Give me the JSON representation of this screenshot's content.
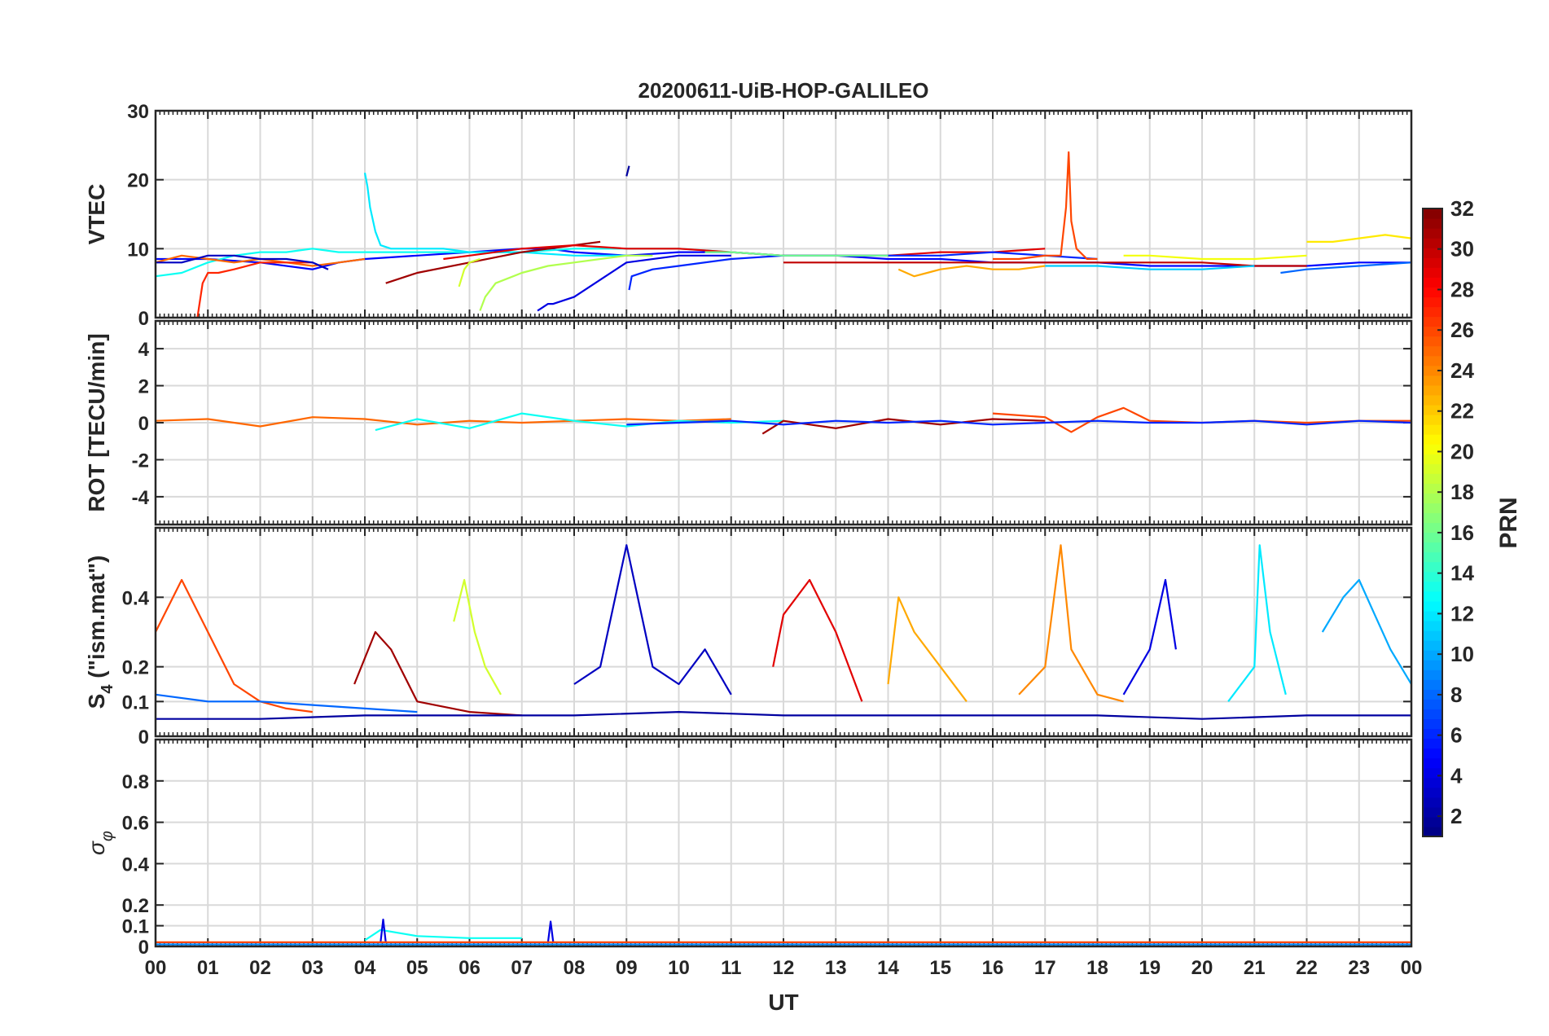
{
  "title": "20200611-UiB-HOP-GALILEO",
  "x_axis": {
    "label": "UT",
    "tick_labels": [
      "00",
      "01",
      "02",
      "03",
      "04",
      "05",
      "06",
      "07",
      "08",
      "09",
      "10",
      "11",
      "12",
      "13",
      "14",
      "15",
      "16",
      "17",
      "18",
      "19",
      "20",
      "21",
      "22",
      "23",
      "00"
    ]
  },
  "colorbar": {
    "label": "PRN",
    "range": [
      1,
      32
    ],
    "tick_labels": [
      "2",
      "4",
      "6",
      "8",
      "10",
      "12",
      "14",
      "16",
      "18",
      "20",
      "22",
      "24",
      "26",
      "28",
      "30",
      "32"
    ],
    "colormap": "jet"
  },
  "panels": [
    {
      "id": "vtec",
      "ylabel": "VTEC",
      "tick_labels": [
        "0",
        "10",
        "20",
        "30"
      ]
    },
    {
      "id": "rot",
      "ylabel": "ROT [TECU/min]",
      "tick_labels": [
        "-4",
        "-2",
        "0",
        "2",
        "4"
      ]
    },
    {
      "id": "s4",
      "ylabel_main": "S",
      "ylabel_sub": "4",
      "ylabel_rest": " (\"ism.mat\")",
      "tick_labels": [
        "0",
        "0.1",
        "0.2",
        "0.4"
      ]
    },
    {
      "id": "sigphi",
      "ylabel_main": "σ",
      "ylabel_sub": "φ",
      "tick_labels": [
        "0",
        "0.1",
        "0.2",
        "0.4",
        "0.6",
        "0.8"
      ]
    }
  ],
  "chart_data": [
    {
      "type": "line",
      "panel": "vtec",
      "title": "20200611-UiB-HOP-GALILEO",
      "xlabel": "UT",
      "ylabel": "VTEC",
      "xlim": [
        0,
        24
      ],
      "ylim": [
        0,
        30
      ],
      "yticks": [
        0,
        10,
        20,
        30
      ],
      "grid": true,
      "series": [
        {
          "prn": 5,
          "x": [
            0,
            1,
            2,
            3,
            3.5,
            4,
            5,
            6,
            7,
            7.5,
            8,
            9,
            10,
            11,
            12,
            13,
            14,
            15,
            16,
            17,
            18,
            19,
            20,
            21,
            22,
            23,
            24
          ],
          "y": [
            8.5,
            8.5,
            8,
            7,
            8,
            8.5,
            9,
            9.5,
            10,
            10,
            9.5,
            9,
            9.5,
            9.5,
            9,
            9,
            8.5,
            8.5,
            8,
            8,
            8,
            7.5,
            7.5,
            7.5,
            7.5,
            8,
            8
          ]
        },
        {
          "prn": 13,
          "x": [
            0,
            0.5,
            1,
            1.5,
            2,
            2.5,
            3,
            3.5,
            4,
            5,
            6,
            7,
            8,
            9,
            10,
            11
          ],
          "y": [
            6,
            6.5,
            8,
            9,
            9.5,
            9.5,
            10,
            9.5,
            9.5,
            9.5,
            9.5,
            9.5,
            10,
            10,
            10,
            9.5
          ]
        },
        {
          "prn": 25,
          "x": [
            0,
            0.5,
            1,
            1.5,
            2,
            2.5,
            3,
            3.5,
            4
          ],
          "y": [
            8,
            9,
            8.5,
            8,
            8.5,
            8,
            7.5,
            8,
            8.5
          ]
        },
        {
          "prn": 27,
          "x": [
            0.8,
            0.9,
            1,
            1.2,
            1.5,
            2,
            2.5,
            3
          ],
          "y": [
            0,
            5,
            6.5,
            6.5,
            7,
            8,
            8,
            8
          ]
        },
        {
          "prn": 3,
          "x": [
            0,
            0.5,
            1,
            1.5,
            2,
            2.5,
            3,
            3.3
          ],
          "y": [
            8,
            8,
            9,
            9,
            8.5,
            8.5,
            8,
            7
          ]
        },
        {
          "prn": 12,
          "x": [
            4,
            4.05,
            4.1,
            4.2,
            4.3,
            4.5,
            5,
            5.5,
            6,
            6.5,
            7,
            8,
            9
          ],
          "y": [
            21,
            19,
            16,
            12.5,
            10.5,
            10,
            10,
            10,
            9.5,
            9.5,
            9.5,
            9,
            9
          ]
        },
        {
          "prn": 31,
          "x": [
            4.4,
            5,
            6,
            7,
            8,
            8.5
          ],
          "y": [
            5,
            6.5,
            8,
            9.5,
            10.5,
            11
          ]
        },
        {
          "prn": 29,
          "x": [
            5.5,
            6,
            7,
            8,
            9,
            10,
            11,
            12,
            13,
            14,
            15,
            16,
            17
          ],
          "y": [
            8.5,
            9,
            10,
            10.5,
            10,
            10,
            9.5,
            9,
            9,
            9,
            9.5,
            9.5,
            10
          ]
        },
        {
          "prn": 19,
          "x": [
            5.8,
            5.9,
            6,
            6.2
          ],
          "y": [
            4.5,
            7,
            8,
            8.5
          ]
        },
        {
          "prn": 18,
          "x": [
            6.2,
            6.3,
            6.5,
            7,
            7.5,
            8,
            8.5,
            9,
            9.5
          ],
          "y": [
            1,
            3,
            5,
            6.5,
            7.5,
            8,
            8.5,
            9,
            9
          ]
        },
        {
          "prn": 4,
          "x": [
            7.3,
            7.4,
            7.5,
            7.6,
            8,
            9,
            10,
            11
          ],
          "y": [
            1,
            1.5,
            2,
            2,
            3,
            8,
            9,
            9
          ]
        },
        {
          "prn": 2,
          "x": [
            9,
            9.05
          ],
          "y": [
            20.5,
            22
          ]
        },
        {
          "prn": 6,
          "x": [
            9.05,
            9.1,
            9.5,
            10,
            11,
            12,
            13,
            14,
            15,
            16,
            17,
            18
          ],
          "y": [
            4,
            6,
            7,
            7.5,
            8.5,
            9,
            9,
            9,
            9,
            9.5,
            9,
            8.5
          ]
        },
        {
          "prn": 16,
          "x": [
            10.5,
            11,
            12,
            13,
            14
          ],
          "y": [
            9.5,
            9.5,
            9,
            9,
            9
          ]
        },
        {
          "prn": 23,
          "x": [
            14.2,
            14.5,
            15,
            15.5,
            16,
            16.5,
            17
          ],
          "y": [
            7,
            6,
            7,
            7.5,
            7,
            7,
            7.5
          ]
        },
        {
          "prn": 26,
          "x": [
            16,
            16.5,
            17,
            17.3,
            17.4,
            17.45,
            17.5,
            17.6,
            17.8,
            18
          ],
          "y": [
            8.5,
            8.5,
            9,
            9,
            16,
            24,
            14,
            10,
            8.5,
            8.5
          ]
        },
        {
          "prn": 30,
          "x": [
            12,
            13,
            14,
            15,
            16,
            17,
            18,
            19,
            20,
            21,
            22
          ],
          "y": [
            8,
            8,
            8,
            8,
            8,
            8,
            8,
            8,
            8,
            7.5,
            7.5
          ]
        },
        {
          "prn": 11,
          "x": [
            17,
            18,
            19,
            20,
            21
          ],
          "y": [
            7.5,
            7.5,
            7,
            7,
            7.5
          ]
        },
        {
          "prn": 20,
          "x": [
            18.5,
            19,
            20,
            21,
            22
          ],
          "y": [
            9,
            9,
            8.5,
            8.5,
            9
          ]
        },
        {
          "prn": 8,
          "x": [
            21.5,
            22,
            23,
            24
          ],
          "y": [
            6.5,
            7,
            7.5,
            8
          ]
        },
        {
          "prn": 21,
          "x": [
            22,
            22.5,
            23,
            23.5,
            24
          ],
          "y": [
            11,
            11,
            11.5,
            12,
            11.5
          ]
        }
      ]
    },
    {
      "type": "line",
      "panel": "rot",
      "xlabel": "UT",
      "ylabel": "ROT [TECU/min]",
      "xlim": [
        0,
        24
      ],
      "ylim": [
        -5.5,
        5.5
      ],
      "yticks": [
        -4,
        -2,
        0,
        2,
        4
      ],
      "grid": true,
      "series": [
        {
          "prn": 25,
          "x": [
            0,
            1,
            2,
            3,
            4,
            5,
            6,
            7,
            8,
            9,
            10,
            11
          ],
          "y": [
            0.1,
            0.2,
            -0.2,
            0.3,
            0.2,
            -0.1,
            0.1,
            0,
            0.1,
            0.2,
            0.1,
            0.2
          ]
        },
        {
          "prn": 13,
          "x": [
            4.2,
            5,
            6,
            7,
            8,
            9,
            10,
            11,
            12
          ],
          "y": [
            -0.4,
            0.2,
            -0.3,
            0.5,
            0.1,
            -0.2,
            0.1,
            0,
            0.1
          ]
        },
        {
          "prn": 31,
          "x": [
            11.6,
            12,
            13,
            14,
            15,
            16,
            17
          ],
          "y": [
            -0.6,
            0.1,
            -0.3,
            0.2,
            -0.1,
            0.2,
            0.1
          ]
        },
        {
          "prn": 26,
          "x": [
            16,
            17,
            17.5,
            18,
            18.5,
            19,
            20,
            21,
            22,
            23,
            24
          ],
          "y": [
            0.5,
            0.3,
            -0.5,
            0.3,
            0.8,
            0.1,
            0,
            0.1,
            0,
            0.1,
            0.1
          ]
        },
        {
          "prn": 6,
          "x": [
            9,
            10,
            11,
            12,
            13,
            14,
            15,
            16,
            17,
            18,
            19,
            20,
            21,
            22,
            23,
            24
          ],
          "y": [
            -0.1,
            0,
            0.1,
            -0.1,
            0.1,
            0,
            0.1,
            -0.1,
            0,
            0.1,
            0,
            0,
            0.1,
            -0.1,
            0.1,
            0
          ]
        }
      ]
    },
    {
      "type": "line",
      "panel": "s4",
      "xlabel": "UT",
      "ylabel": "S4 (\"ism.mat\")",
      "xlim": [
        0,
        24
      ],
      "ylim": [
        0,
        0.6
      ],
      "yticks": [
        0,
        0.1,
        0.2,
        0.4
      ],
      "grid": true,
      "series": [
        {
          "prn": 26,
          "x": [
            0,
            0.5,
            1,
            1.5,
            2,
            2.5,
            3
          ],
          "y": [
            0.3,
            0.45,
            0.3,
            0.15,
            0.1,
            0.08,
            0.07
          ]
        },
        {
          "prn": 8,
          "x": [
            0,
            1,
            2,
            3,
            4,
            5
          ],
          "y": [
            0.12,
            0.1,
            0.1,
            0.09,
            0.08,
            0.07
          ]
        },
        {
          "prn": 31,
          "x": [
            3.8,
            4.2,
            4.5,
            5,
            6,
            7
          ],
          "y": [
            0.15,
            0.3,
            0.25,
            0.1,
            0.07,
            0.06
          ]
        },
        {
          "prn": 19,
          "x": [
            5.7,
            5.9,
            6.1,
            6.3,
            6.6
          ],
          "y": [
            0.33,
            0.45,
            0.3,
            0.2,
            0.12
          ]
        },
        {
          "prn": 3,
          "x": [
            8,
            8.5,
            9,
            9.5,
            10,
            10.5,
            11
          ],
          "y": [
            0.15,
            0.2,
            0.55,
            0.2,
            0.15,
            0.25,
            0.12
          ]
        },
        {
          "prn": 29,
          "x": [
            11.8,
            12,
            12.5,
            13,
            13.5
          ],
          "y": [
            0.2,
            0.35,
            0.45,
            0.3,
            0.1
          ]
        },
        {
          "prn": 23,
          "x": [
            14,
            14.2,
            14.5,
            15,
            15.5
          ],
          "y": [
            0.15,
            0.4,
            0.3,
            0.2,
            0.1
          ]
        },
        {
          "prn": 24,
          "x": [
            16.5,
            17,
            17.3,
            17.5,
            18,
            18.5
          ],
          "y": [
            0.12,
            0.2,
            0.55,
            0.25,
            0.12,
            0.1
          ]
        },
        {
          "prn": 4,
          "x": [
            18.5,
            19,
            19.3,
            19.5
          ],
          "y": [
            0.12,
            0.25,
            0.45,
            0.25
          ]
        },
        {
          "prn": 12,
          "x": [
            20.5,
            21,
            21.1,
            21.3,
            21.6
          ],
          "y": [
            0.1,
            0.2,
            0.55,
            0.3,
            0.12
          ]
        },
        {
          "prn": 10,
          "x": [
            22.3,
            22.7,
            23,
            23.3,
            23.6,
            24
          ],
          "y": [
            0.3,
            0.4,
            0.45,
            0.35,
            0.25,
            0.15
          ]
        },
        {
          "prn": 2,
          "x": [
            0,
            2,
            4,
            6,
            8,
            10,
            12,
            14,
            16,
            18,
            20,
            22,
            24
          ],
          "y": [
            0.05,
            0.05,
            0.06,
            0.06,
            0.06,
            0.07,
            0.06,
            0.06,
            0.06,
            0.06,
            0.05,
            0.06,
            0.06
          ]
        }
      ]
    },
    {
      "type": "line",
      "panel": "sigphi",
      "xlabel": "UT",
      "ylabel": "σφ",
      "xlim": [
        0,
        24
      ],
      "ylim": [
        0,
        1
      ],
      "yticks": [
        0,
        0.1,
        0.2,
        0.4,
        0.6,
        0.8
      ],
      "grid": true,
      "series": [
        {
          "prn": 13,
          "x": [
            4,
            4.3,
            5,
            6,
            7
          ],
          "y": [
            0.03,
            0.08,
            0.05,
            0.04,
            0.04
          ]
        },
        {
          "prn": 4,
          "x": [
            4.3,
            4.35,
            4.4
          ],
          "y": [
            0.02,
            0.13,
            0.02
          ]
        },
        {
          "prn": 4,
          "x": [
            7.5,
            7.55,
            7.6
          ],
          "y": [
            0.02,
            0.12,
            0.02
          ]
        },
        {
          "prn": 26,
          "x": [
            0,
            4,
            8,
            12,
            16,
            20,
            24
          ],
          "y": [
            0.02,
            0.02,
            0.02,
            0.02,
            0.02,
            0.02,
            0.02
          ]
        },
        {
          "prn": 9,
          "x": [
            0,
            6,
            12,
            18,
            24
          ],
          "y": [
            0.01,
            0.01,
            0.01,
            0.01,
            0.01
          ]
        }
      ]
    }
  ]
}
